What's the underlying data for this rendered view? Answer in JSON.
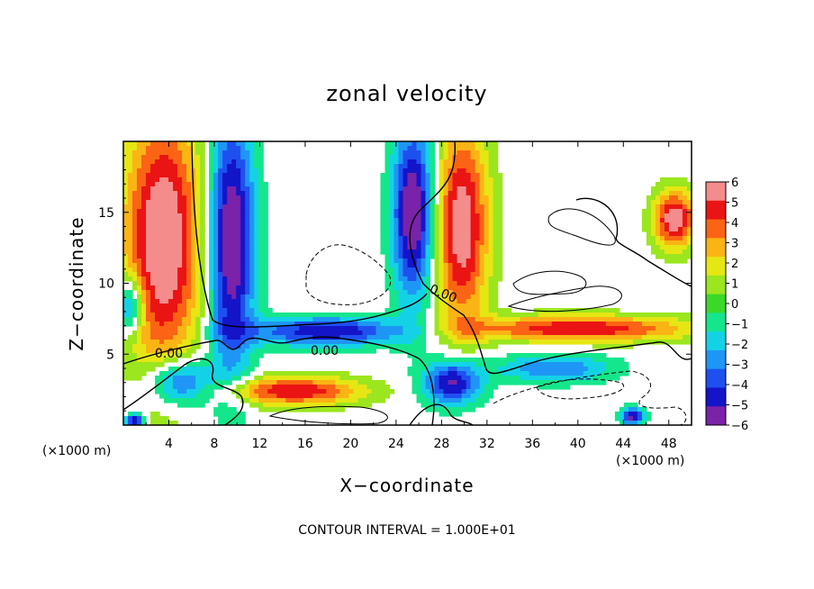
{
  "chart_data": {
    "type": "heatmap",
    "title": "zonal velocity",
    "xlabel": "X−coordinate",
    "ylabel": "Z−coordinate",
    "x_unit": "(×1000 m)",
    "y_unit": "(×1000 m)",
    "xlim": [
      0,
      50
    ],
    "ylim": [
      0,
      20
    ],
    "x_ticks": [
      4,
      8,
      12,
      16,
      20,
      24,
      28,
      32,
      36,
      40,
      44,
      48
    ],
    "y_ticks": [
      5,
      10,
      15
    ],
    "colorbar": {
      "ticks": [
        "6",
        "5",
        "4",
        "3",
        "2",
        "1",
        "0",
        "−1",
        "−2",
        "−3",
        "−4",
        "−5",
        "−6"
      ],
      "range": [
        -6,
        6
      ]
    },
    "contour_labels": [
      "0.00",
      "0.00",
      "0.00"
    ],
    "note": "CONTOUR INTERVAL = 1.000E+01",
    "fields": {
      "plumes": [
        {
          "x": 3.5,
          "z": 13.0,
          "sx": 3.4,
          "sz": 9.0,
          "amp": 7.0
        },
        {
          "x": 9.5,
          "z": 13.0,
          "sx": 2.0,
          "sz": 9.0,
          "amp": -7.0
        },
        {
          "x": 25.5,
          "z": 15.0,
          "sx": 1.8,
          "sz": 6.0,
          "amp": -7.0
        },
        {
          "x": 29.8,
          "z": 14.0,
          "sx": 2.3,
          "sz": 7.0,
          "amp": 6.5
        },
        {
          "x": 18.0,
          "z": 6.6,
          "sx": 7.0,
          "sz": 1.0,
          "amp": -5.5
        },
        {
          "x": 40.0,
          "z": 6.8,
          "sx": 10.0,
          "sz": 0.9,
          "amp": 5.5
        },
        {
          "x": 15.0,
          "z": 2.4,
          "sx": 6.0,
          "sz": 1.0,
          "amp": 5.5
        },
        {
          "x": 5.0,
          "z": 3.0,
          "sx": 2.8,
          "sz": 1.6,
          "amp": -5.0
        },
        {
          "x": 29.0,
          "z": 3.0,
          "sx": 2.5,
          "sz": 1.6,
          "amp": -6.0
        },
        {
          "x": 38.0,
          "z": 4.0,
          "sx": 5.0,
          "sz": 1.0,
          "amp": -3.5
        },
        {
          "x": 48.5,
          "z": 14.5,
          "sx": 1.8,
          "sz": 2.0,
          "amp": 6.5
        },
        {
          "x": 0.6,
          "z": 8.5,
          "sx": 1.2,
          "sz": 2.0,
          "amp": -4.5
        },
        {
          "x": 44.8,
          "z": 0.6,
          "sx": 1.0,
          "sz": 0.6,
          "amp": -6.0
        },
        {
          "x": 1.0,
          "z": 0.3,
          "sx": 0.8,
          "sz": 0.5,
          "amp": -6.0
        }
      ]
    }
  }
}
